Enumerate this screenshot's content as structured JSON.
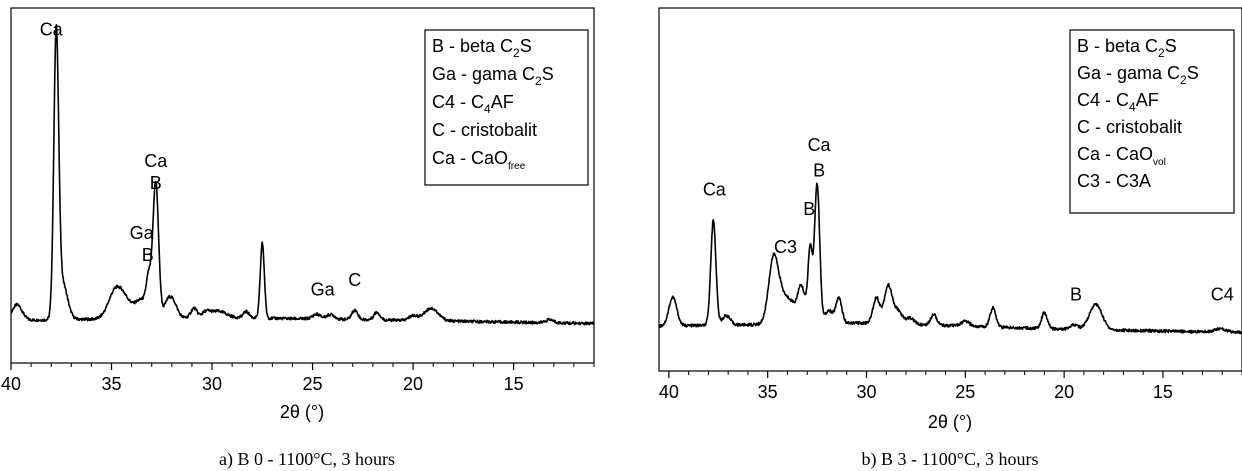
{
  "chart_data": [
    {
      "type": "line",
      "caption": "a) B 0 - 1100°C, 3 hours",
      "xlabel": "2θ (°)",
      "ylabel": "",
      "xlim": [
        40,
        11
      ],
      "ylim": [
        0,
        100
      ],
      "x_reversed": true,
      "grid": false,
      "xticks": [
        40,
        35,
        30,
        25,
        20,
        15
      ],
      "legend_position": "top-right",
      "legend": [
        {
          "key": "B",
          "dash": " - ",
          "text": "beta C",
          "sub": "2",
          "tail": "S"
        },
        {
          "key": "Ga",
          "dash": " - ",
          "text": "gama C",
          "sub": "2",
          "tail": "S"
        },
        {
          "key": "C4",
          "dash": " - ",
          "text": "C",
          "sub": "4",
          "tail": "AF"
        },
        {
          "key": "C",
          "dash": " - ",
          "text": "cristobalit",
          "sub": "",
          "tail": ""
        },
        {
          "key": "Ca",
          "dash": " - ",
          "text": "CaO",
          "sub": "free",
          "tail": ""
        }
      ],
      "peak_labels": [
        {
          "text": "Ca",
          "x": 38.0,
          "y": 95
        },
        {
          "text": "Ca",
          "x": 32.8,
          "y": 53
        },
        {
          "text": "B",
          "x": 32.8,
          "y": 46
        },
        {
          "text": "Ga",
          "x": 33.5,
          "y": 30
        },
        {
          "text": "B",
          "x": 33.2,
          "y": 23
        },
        {
          "text": "Ga",
          "x": 24.5,
          "y": 12
        },
        {
          "text": "C",
          "x": 22.9,
          "y": 15
        }
      ],
      "baseline": 4,
      "background": [
        [
          40,
          4
        ],
        [
          30,
          5
        ],
        [
          20,
          4
        ],
        [
          11,
          3
        ]
      ],
      "peaks": [
        {
          "x": 39.7,
          "h": 5,
          "w": 0.25
        },
        {
          "x": 37.75,
          "h": 88,
          "w": 0.12
        },
        {
          "x": 37.45,
          "h": 12,
          "w": 0.25
        },
        {
          "x": 34.8,
          "h": 9,
          "w": 0.35
        },
        {
          "x": 34.3,
          "h": 4,
          "w": 0.3
        },
        {
          "x": 33.5,
          "h": 6,
          "w": 0.35
        },
        {
          "x": 33.15,
          "h": 10,
          "w": 0.12
        },
        {
          "x": 32.8,
          "h": 43,
          "w": 0.14
        },
        {
          "x": 32.2,
          "h": 5,
          "w": 0.2
        },
        {
          "x": 31.9,
          "h": 4,
          "w": 0.2
        },
        {
          "x": 30.9,
          "h": 3,
          "w": 0.15
        },
        {
          "x": 30.3,
          "h": 1.5,
          "w": 0.2
        },
        {
          "x": 29.7,
          "h": 2,
          "w": 0.4
        },
        {
          "x": 28.3,
          "h": 2,
          "w": 0.15
        },
        {
          "x": 27.5,
          "h": 24,
          "w": 0.1
        },
        {
          "x": 24.8,
          "h": 1.5,
          "w": 0.2
        },
        {
          "x": 24.1,
          "h": 1.5,
          "w": 0.2
        },
        {
          "x": 22.9,
          "h": 3,
          "w": 0.15
        },
        {
          "x": 21.8,
          "h": 2.5,
          "w": 0.15
        },
        {
          "x": 20.0,
          "h": 1.5,
          "w": 0.2
        },
        {
          "x": 19.1,
          "h": 4,
          "w": 0.35
        },
        {
          "x": 13.2,
          "h": 1,
          "w": 0.2
        }
      ]
    },
    {
      "type": "line",
      "caption": "b) B 3 - 1100°C, 3 hours",
      "xlabel": "2θ (°)",
      "ylabel": "",
      "xlim": [
        40.5,
        11
      ],
      "ylim": [
        0,
        100
      ],
      "x_reversed": true,
      "grid": false,
      "xticks": [
        40,
        35,
        30,
        25,
        20,
        15
      ],
      "legend_position": "top-right",
      "legend": [
        {
          "key": "B",
          "dash": " - ",
          "text": "beta C",
          "sub": "2",
          "tail": "S"
        },
        {
          "key": "Ga",
          "dash": " - ",
          "text": "gama C",
          "sub": "2",
          "tail": "S"
        },
        {
          "key": "C4",
          "dash": " - ",
          "text": "C",
          "sub": "4",
          "tail": "AF"
        },
        {
          "key": "C",
          "dash": " - ",
          "text": "cristobalit",
          "sub": "",
          "tail": ""
        },
        {
          "key": "Ca",
          "dash": " - ",
          "text": "CaO",
          "sub": "vol",
          "tail": ""
        },
        {
          "key": "C3",
          "dash": " - ",
          "text": "C3A",
          "sub": "",
          "tail": ""
        }
      ],
      "peak_labels": [
        {
          "text": "Ca",
          "x": 37.7,
          "y": 46
        },
        {
          "text": "C3",
          "x": 34.1,
          "y": 28
        },
        {
          "text": "B",
          "x": 32.9,
          "y": 40
        },
        {
          "text": "Ca",
          "x": 32.4,
          "y": 60
        },
        {
          "text": "B",
          "x": 32.4,
          "y": 52
        },
        {
          "text": "B",
          "x": 19.4,
          "y": 13
        },
        {
          "text": "C4",
          "x": 12.0,
          "y": 13
        }
      ],
      "baseline": 5,
      "background": [
        [
          40.5,
          5
        ],
        [
          30,
          6
        ],
        [
          20,
          4
        ],
        [
          11,
          3
        ]
      ],
      "peaks": [
        {
          "x": 39.8,
          "h": 9,
          "w": 0.2
        },
        {
          "x": 37.75,
          "h": 33,
          "w": 0.13
        },
        {
          "x": 37.1,
          "h": 3,
          "w": 0.2
        },
        {
          "x": 34.7,
          "h": 21,
          "w": 0.25
        },
        {
          "x": 34.2,
          "h": 7,
          "w": 0.25
        },
        {
          "x": 33.8,
          "h": 5,
          "w": 0.2
        },
        {
          "x": 33.3,
          "h": 12,
          "w": 0.2
        },
        {
          "x": 32.85,
          "h": 23,
          "w": 0.11
        },
        {
          "x": 32.5,
          "h": 44,
          "w": 0.13
        },
        {
          "x": 31.9,
          "h": 4,
          "w": 0.2
        },
        {
          "x": 31.4,
          "h": 8,
          "w": 0.15
        },
        {
          "x": 29.5,
          "h": 8,
          "w": 0.17
        },
        {
          "x": 28.9,
          "h": 12,
          "w": 0.2
        },
        {
          "x": 28.4,
          "h": 4,
          "w": 0.2
        },
        {
          "x": 27.8,
          "h": 2,
          "w": 0.2
        },
        {
          "x": 26.6,
          "h": 3.5,
          "w": 0.15
        },
        {
          "x": 25.0,
          "h": 1.5,
          "w": 0.2
        },
        {
          "x": 23.6,
          "h": 6,
          "w": 0.15
        },
        {
          "x": 21.0,
          "h": 5,
          "w": 0.15
        },
        {
          "x": 19.5,
          "h": 1.5,
          "w": 0.2
        },
        {
          "x": 18.4,
          "h": 8,
          "w": 0.32
        },
        {
          "x": 12.1,
          "h": 1,
          "w": 0.3
        }
      ]
    }
  ]
}
